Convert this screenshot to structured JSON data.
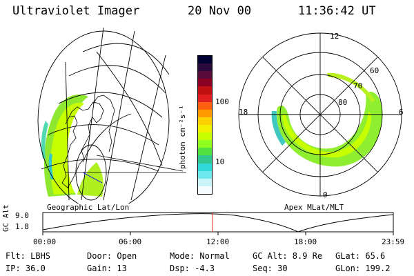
{
  "header": {
    "instrument": "Ultraviolet Imager",
    "date": "20 Nov 00",
    "time": "11:36:42 UT"
  },
  "left_panel": {
    "label": "Geographic Lat/Lon"
  },
  "right_panel": {
    "label": "Apex MLat/MLT",
    "mlt_labels": {
      "top": "12",
      "left": "18",
      "right": "6",
      "bottom": "0"
    },
    "mlat_labels": [
      "60",
      "70",
      "80"
    ]
  },
  "colorbar": {
    "unit": "photon cm⁻²s⁻¹",
    "ticks": [
      "100",
      "10"
    ],
    "colors": [
      "#000033",
      "#2a0a3a",
      "#5a0a3a",
      "#8a0020",
      "#c01010",
      "#e02020",
      "#ff6010",
      "#ff9a00",
      "#ffd000",
      "#f0f000",
      "#c8ff00",
      "#90ff20",
      "#50e040",
      "#30c890",
      "#30d8d8",
      "#70e8f0",
      "#c8f4fa",
      "#f4fcff"
    ]
  },
  "timeline": {
    "axis_label": "GC Alt",
    "y_ticks": [
      "9.0",
      "1.8"
    ],
    "x_ticks": [
      "00:00",
      "06:00",
      "12:00",
      "18:00",
      "23:59"
    ],
    "cursor_fraction": 0.4838
  },
  "info": {
    "row1": {
      "filter": "Flt: LBHS",
      "door": "Door: Open",
      "mode": "Mode: Normal",
      "gc_alt": "GC Alt: 8.9 Re",
      "glat": "GLat:  65.6"
    },
    "row2": {
      "ip": "IP: 36.0",
      "gain": "Gain: 13",
      "dsp": "Dsp:   -4.3",
      "seq": "Seq: 30",
      "glon": "GLon: 199.2"
    }
  }
}
